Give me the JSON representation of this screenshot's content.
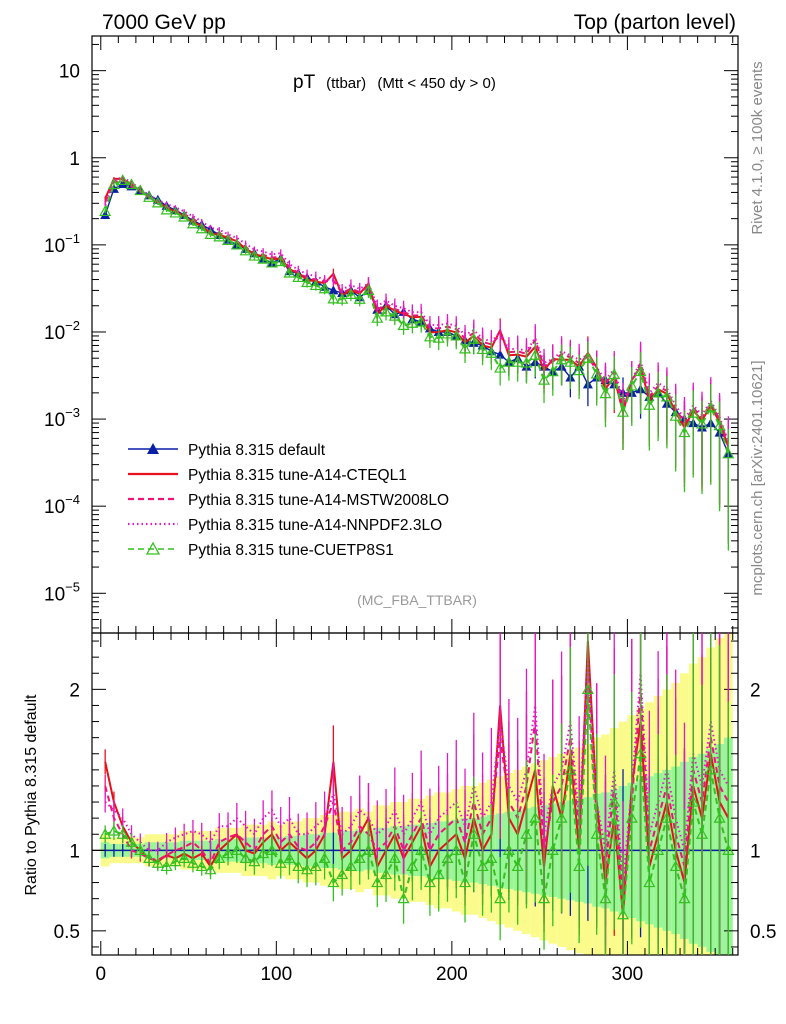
{
  "header": {
    "left": "7000 GeV pp",
    "right": "Top (parton level)"
  },
  "side_labels": {
    "rivet": "Rivet 4.1.0, ≥ 100k events",
    "mcplots": "mcplots.cern.ch [arXiv:2401.10621]"
  },
  "analysis_tag": "(MC_FBA_TTBAR)",
  "title": {
    "main": "pT",
    "sub": "(ttbar)",
    "cut": "(Mtt < 450 dy > 0)"
  },
  "colors": {
    "default": "#0a1fa8",
    "cteql1": "#e8101c",
    "mstw": "#ee1477",
    "nnpdf": "#e018c8",
    "cuetp8s1": "#34c01e",
    "band_yellow": "#fbfb8c",
    "band_green": "#98f598"
  },
  "chart_data": {
    "type": "line",
    "x_axis": {
      "range": [
        -5,
        363
      ],
      "ticks": [
        0,
        100,
        200,
        300
      ],
      "tick_labels": [
        "0",
        "100",
        "200",
        "300"
      ]
    },
    "main_panel": {
      "scale": "log",
      "ylim": [
        3.5e-06,
        25
      ],
      "ticks": [
        {
          "value": 10,
          "base": "10",
          "exp": ""
        },
        {
          "value": 1,
          "base": "1",
          "exp": ""
        },
        {
          "value": 0.1,
          "base": "10",
          "exp": "−1"
        },
        {
          "value": 0.01,
          "base": "10",
          "exp": "−2"
        },
        {
          "value": 0.001,
          "base": "10",
          "exp": "−3"
        },
        {
          "value": 0.0001,
          "base": "10",
          "exp": "−4"
        },
        {
          "value": 1e-05,
          "base": "10",
          "exp": "−5"
        }
      ]
    },
    "ratio_panel": {
      "ylabel": "Ratio to Pythia 8.315 default",
      "ylim": [
        0.35,
        2.35
      ],
      "ticks": [
        0.5,
        1,
        2
      ],
      "tick_labels": [
        "0.5",
        "1",
        "2"
      ],
      "reference": 1.0
    },
    "series": [
      {
        "name": "Pythia 8.315 default",
        "color_key": "default",
        "style": "solid",
        "marker": "triangle-filled",
        "points": [
          [
            2.5,
            0.22
          ],
          [
            7.5,
            0.44
          ],
          [
            12.5,
            0.5
          ],
          [
            17.5,
            0.47
          ],
          [
            22.5,
            0.42
          ],
          [
            27.5,
            0.37
          ],
          [
            32.5,
            0.33
          ],
          [
            37.5,
            0.28
          ],
          [
            42.5,
            0.25
          ],
          [
            47.5,
            0.22
          ],
          [
            52.5,
            0.19
          ],
          [
            57.5,
            0.17
          ],
          [
            62.5,
            0.15
          ],
          [
            67.5,
            0.13
          ],
          [
            72.5,
            0.115
          ],
          [
            77.5,
            0.1
          ],
          [
            82.5,
            0.09
          ],
          [
            87.5,
            0.08
          ],
          [
            92.5,
            0.07
          ],
          [
            97.5,
            0.062
          ],
          [
            102.5,
            0.07
          ],
          [
            107.5,
            0.05
          ],
          [
            112.5,
            0.047
          ],
          [
            117.5,
            0.042
          ],
          [
            122.5,
            0.038
          ],
          [
            127.5,
            0.033
          ],
          [
            132.5,
            0.03
          ],
          [
            137.5,
            0.028
          ],
          [
            142.5,
            0.03
          ],
          [
            147.5,
            0.025
          ],
          [
            152.5,
            0.03
          ],
          [
            157.5,
            0.018
          ],
          [
            162.5,
            0.02
          ],
          [
            167.5,
            0.016
          ],
          [
            172.5,
            0.017
          ],
          [
            177.5,
            0.014
          ],
          [
            182.5,
            0.013
          ],
          [
            187.5,
            0.011
          ],
          [
            192.5,
            0.01
          ],
          [
            197.5,
            0.01
          ],
          [
            202.5,
            0.009
          ],
          [
            207.5,
            0.008
          ],
          [
            212.5,
            0.0075
          ],
          [
            217.5,
            0.007
          ],
          [
            222.5,
            0.006
          ],
          [
            227.5,
            0.0055
          ],
          [
            232.5,
            0.0045
          ],
          [
            237.5,
            0.005
          ],
          [
            242.5,
            0.004
          ],
          [
            247.5,
            0.0045
          ],
          [
            252.5,
            0.004
          ],
          [
            257.5,
            0.0035
          ],
          [
            262.5,
            0.004
          ],
          [
            267.5,
            0.003
          ],
          [
            272.5,
            0.004
          ],
          [
            277.5,
            0.0025
          ],
          [
            282.5,
            0.003
          ],
          [
            287.5,
            0.0028
          ],
          [
            292.5,
            0.0025
          ],
          [
            297.5,
            0.002
          ],
          [
            302.5,
            0.002
          ],
          [
            307.5,
            0.0022
          ],
          [
            312.5,
            0.0018
          ],
          [
            317.5,
            0.002
          ],
          [
            322.5,
            0.0015
          ],
          [
            327.5,
            0.0012
          ],
          [
            332.5,
            0.001
          ],
          [
            337.5,
            0.0009
          ],
          [
            342.5,
            0.0008
          ],
          [
            347.5,
            0.0009
          ],
          [
            352.5,
            0.0007
          ],
          [
            357.5,
            0.0004
          ]
        ]
      },
      {
        "name": "Pythia 8.315 tune-A14-CTEQL1",
        "color_key": "cteql1",
        "style": "solid",
        "marker": "none",
        "ratio": [
          1.55,
          1.3,
          1.15,
          1.05,
          1.0,
          0.95,
          0.93,
          0.97,
          0.95,
          0.98,
          0.95,
          0.98,
          0.9,
          1.0,
          1.05,
          1.1,
          1.0,
          0.98,
          1.05,
          1.1,
          1.0,
          1.05,
          1.0,
          0.95,
          1.0,
          1.1,
          1.55,
          0.95,
          1.0,
          1.1,
          1.2,
          0.9,
          1.0,
          1.1,
          0.95,
          1.05,
          1.15,
          0.9,
          1.0,
          1.05,
          1.1,
          0.95,
          1.2,
          1.0,
          1.1,
          1.9,
          1.2,
          1.1,
          1.3,
          1.5,
          0.9,
          1.4,
          1.2,
          1.6,
          1.0,
          2.3,
          1.3,
          0.8,
          1.2,
          0.6,
          1.4,
          1.8,
          0.9,
          1.1,
          1.3,
          1.0,
          0.8,
          1.4,
          1.2,
          1.6,
          1.3,
          1.2
        ]
      },
      {
        "name": "Pythia 8.315 tune-A14-MSTW2008LO",
        "color_key": "mstw",
        "style": "dashed",
        "marker": "none",
        "ratio": [
          1.4,
          1.2,
          1.1,
          1.0,
          0.98,
          0.95,
          0.94,
          0.97,
          1.0,
          1.02,
          1.05,
          1.0,
          0.92,
          1.05,
          1.08,
          1.1,
          1.05,
          1.0,
          1.1,
          1.15,
          1.05,
          1.1,
          1.02,
          1.0,
          1.05,
          1.15,
          1.3,
          1.0,
          1.05,
          1.15,
          1.1,
          1.0,
          1.05,
          1.15,
          1.0,
          1.1,
          1.2,
          1.0,
          1.1,
          1.15,
          1.2,
          1.05,
          1.3,
          1.1,
          1.2,
          1.7,
          1.3,
          1.2,
          1.4,
          1.8,
          1.0,
          1.3,
          1.4,
          1.7,
          1.1,
          2.1,
          1.2,
          0.9,
          1.4,
          0.7,
          1.3,
          2.0,
          1.0,
          1.2,
          1.4,
          1.1,
          0.9,
          1.5,
          1.3,
          1.7,
          1.4,
          1.3
        ]
      },
      {
        "name": "Pythia 8.315 tune-A14-NNPDF2.3LO",
        "color_key": "nnpdf",
        "style": "dotted",
        "marker": "none",
        "ratio": [
          1.3,
          1.25,
          1.2,
          1.1,
          1.05,
          1.0,
          1.0,
          1.05,
          1.08,
          1.1,
          1.12,
          1.1,
          1.05,
          1.15,
          1.15,
          1.2,
          1.15,
          1.1,
          1.2,
          1.25,
          1.15,
          1.2,
          1.1,
          1.1,
          1.15,
          1.2,
          1.35,
          1.1,
          1.15,
          1.25,
          1.2,
          1.1,
          1.15,
          1.25,
          1.1,
          1.2,
          1.3,
          1.1,
          1.2,
          1.25,
          1.3,
          1.15,
          1.4,
          1.2,
          1.3,
          1.8,
          1.4,
          1.3,
          1.5,
          1.9,
          1.1,
          1.4,
          1.5,
          1.8,
          1.2,
          2.2,
          1.3,
          1.0,
          1.5,
          0.8,
          1.4,
          2.1,
          1.1,
          1.3,
          1.5,
          1.2,
          1.0,
          1.6,
          1.4,
          1.8,
          1.5,
          1.4
        ]
      },
      {
        "name": "Pythia 8.315 tune-CUETP8S1",
        "color_key": "cuetp8s1",
        "style": "dashed",
        "marker": "triangle-open",
        "ratio": [
          1.1,
          1.12,
          1.1,
          1.05,
          1.0,
          0.95,
          0.92,
          0.9,
          0.93,
          0.95,
          0.92,
          0.9,
          0.88,
          0.95,
          0.98,
          1.0,
          0.95,
          0.93,
          0.98,
          1.0,
          0.92,
          0.95,
          0.9,
          0.88,
          0.9,
          0.95,
          0.8,
          0.85,
          0.9,
          0.95,
          1.0,
          0.8,
          0.85,
          0.95,
          0.7,
          0.9,
          1.0,
          0.8,
          0.85,
          0.95,
          1.0,
          0.8,
          1.1,
          0.9,
          0.95,
          0.7,
          1.0,
          0.9,
          1.1,
          1.2,
          0.7,
          1.0,
          1.2,
          1.5,
          0.9,
          2.0,
          1.1,
          0.7,
          1.3,
          0.6,
          1.2,
          1.6,
          0.8,
          1.0,
          1.2,
          0.9,
          0.7,
          1.3,
          1.1,
          1.5,
          1.2,
          1.0
        ]
      }
    ],
    "uncertainty_band": {
      "description": "default MC statistical uncertainty (ratio)",
      "half_width": [
        0.05,
        0.04,
        0.04,
        0.04,
        0.04,
        0.05,
        0.05,
        0.05,
        0.05,
        0.06,
        0.06,
        0.06,
        0.06,
        0.07,
        0.07,
        0.07,
        0.08,
        0.08,
        0.08,
        0.09,
        0.08,
        0.09,
        0.09,
        0.1,
        0.1,
        0.11,
        0.11,
        0.12,
        0.12,
        0.13,
        0.12,
        0.14,
        0.14,
        0.15,
        0.15,
        0.16,
        0.16,
        0.17,
        0.18,
        0.18,
        0.19,
        0.2,
        0.2,
        0.21,
        0.22,
        0.23,
        0.24,
        0.25,
        0.26,
        0.27,
        0.28,
        0.29,
        0.3,
        0.31,
        0.32,
        0.33,
        0.35,
        0.36,
        0.38,
        0.4,
        0.42,
        0.44,
        0.46,
        0.48,
        0.5,
        0.52,
        0.55,
        0.58,
        0.6,
        0.63,
        0.66,
        0.7
      ]
    }
  }
}
